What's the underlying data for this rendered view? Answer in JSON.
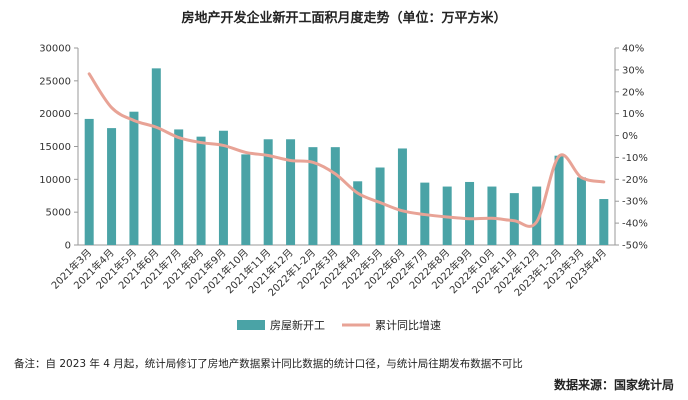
{
  "colors": {
    "bar": "#4aa3a6",
    "line": "#e8a396",
    "axis": "#9a9a9a",
    "text": "#222222"
  },
  "chart_data": {
    "type": "bar",
    "title": "房地产开发企业新开工面积月度走势（单位：万平方米）",
    "categories": [
      "2021年3月",
      "2021年4月",
      "2021年5月",
      "2021年6月",
      "2021年7月",
      "2021年8月",
      "2021年9月",
      "2021年10月",
      "2021年11月",
      "2021年12月",
      "2022年1-2月",
      "2022年3月",
      "2022年4月",
      "2022年5月",
      "2022年6月",
      "2022年7月",
      "2022年8月",
      "2022年9月",
      "2022年10月",
      "2022年11月",
      "2022年12月",
      "2023年1-2月",
      "2023年3月",
      "2023年4月"
    ],
    "series": [
      {
        "name": "房屋新开工",
        "type": "bar",
        "axis": "left",
        "values": [
          19200,
          17800,
          20300,
          26900,
          17600,
          16500,
          17400,
          13800,
          16100,
          16100,
          14900,
          14900,
          9700,
          11800,
          14700,
          9500,
          8900,
          9600,
          8900,
          7900,
          8900,
          13600,
          10300,
          7000
        ]
      },
      {
        "name": "累计同比增速",
        "type": "line",
        "axis": "right",
        "unit": "%",
        "values": [
          28.2,
          12.8,
          6.9,
          3.8,
          -0.9,
          -3.2,
          -4.5,
          -7.7,
          -9.1,
          -11.4,
          -12.2,
          -17.5,
          -26.3,
          -30.6,
          -34.4,
          -36.1,
          -37.2,
          -38.0,
          -37.8,
          -38.9,
          -39.4,
          -9.4,
          -19.2,
          -21.2
        ]
      }
    ],
    "y_left": {
      "ylim": [
        0,
        30000
      ],
      "ticks": [
        0,
        5000,
        10000,
        15000,
        20000,
        25000,
        30000
      ],
      "tick_labels": [
        "0",
        "5000",
        "10000",
        "15000",
        "20000",
        "25000",
        "30000"
      ]
    },
    "y_right": {
      "ylim": [
        -50,
        40
      ],
      "ticks": [
        -50,
        -40,
        -30,
        -20,
        -10,
        0,
        10,
        20,
        30,
        40
      ],
      "tick_labels": [
        "-50%",
        "-40%",
        "-30%",
        "-20%",
        "-10%",
        "0%",
        "10%",
        "20%",
        "30%",
        "40%"
      ]
    },
    "grid": false,
    "legend_position": "bottom-center"
  },
  "note": "备注：自 2023 年 4 月起，统计局修订了房地产数据累计同比数据的统计口径，与统计局往期发布数据不可比",
  "source": "数据来源：国家统计局"
}
